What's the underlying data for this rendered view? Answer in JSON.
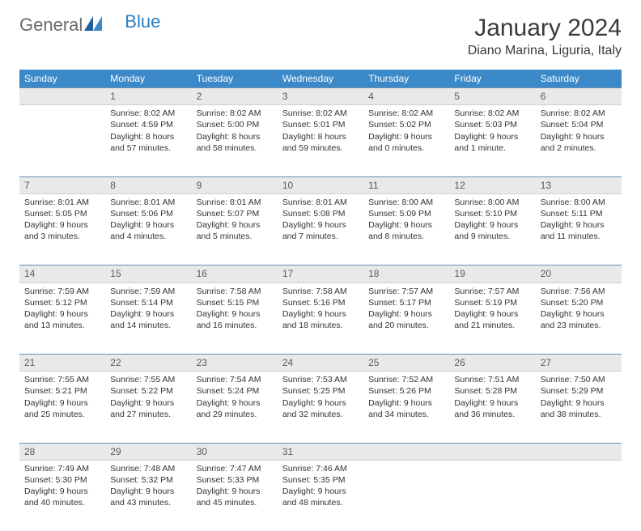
{
  "logo": {
    "part1": "General",
    "part2": "Blue"
  },
  "title": "January 2024",
  "location": "Diano Marina, Liguria, Italy",
  "colors": {
    "header_bg": "#3b89c9",
    "header_fg": "#ffffff",
    "daynum_bg": "#e9e9e9",
    "rule": "#6a8fb0",
    "text": "#333333",
    "logo_gray": "#6a6a6a",
    "logo_blue": "#2b7fc4"
  },
  "typography": {
    "title_fontsize": 30,
    "location_fontsize": 16,
    "header_fontsize": 12,
    "cell_fontsize": 10.5
  },
  "weekdays": [
    "Sunday",
    "Monday",
    "Tuesday",
    "Wednesday",
    "Thursday",
    "Friday",
    "Saturday"
  ],
  "weeks": [
    [
      {
        "n": "",
        "lines": [
          "",
          "",
          "",
          ""
        ]
      },
      {
        "n": "1",
        "lines": [
          "Sunrise: 8:02 AM",
          "Sunset: 4:59 PM",
          "Daylight: 8 hours",
          "and 57 minutes."
        ]
      },
      {
        "n": "2",
        "lines": [
          "Sunrise: 8:02 AM",
          "Sunset: 5:00 PM",
          "Daylight: 8 hours",
          "and 58 minutes."
        ]
      },
      {
        "n": "3",
        "lines": [
          "Sunrise: 8:02 AM",
          "Sunset: 5:01 PM",
          "Daylight: 8 hours",
          "and 59 minutes."
        ]
      },
      {
        "n": "4",
        "lines": [
          "Sunrise: 8:02 AM",
          "Sunset: 5:02 PM",
          "Daylight: 9 hours",
          "and 0 minutes."
        ]
      },
      {
        "n": "5",
        "lines": [
          "Sunrise: 8:02 AM",
          "Sunset: 5:03 PM",
          "Daylight: 9 hours",
          "and 1 minute."
        ]
      },
      {
        "n": "6",
        "lines": [
          "Sunrise: 8:02 AM",
          "Sunset: 5:04 PM",
          "Daylight: 9 hours",
          "and 2 minutes."
        ]
      }
    ],
    [
      {
        "n": "7",
        "lines": [
          "Sunrise: 8:01 AM",
          "Sunset: 5:05 PM",
          "Daylight: 9 hours",
          "and 3 minutes."
        ]
      },
      {
        "n": "8",
        "lines": [
          "Sunrise: 8:01 AM",
          "Sunset: 5:06 PM",
          "Daylight: 9 hours",
          "and 4 minutes."
        ]
      },
      {
        "n": "9",
        "lines": [
          "Sunrise: 8:01 AM",
          "Sunset: 5:07 PM",
          "Daylight: 9 hours",
          "and 5 minutes."
        ]
      },
      {
        "n": "10",
        "lines": [
          "Sunrise: 8:01 AM",
          "Sunset: 5:08 PM",
          "Daylight: 9 hours",
          "and 7 minutes."
        ]
      },
      {
        "n": "11",
        "lines": [
          "Sunrise: 8:00 AM",
          "Sunset: 5:09 PM",
          "Daylight: 9 hours",
          "and 8 minutes."
        ]
      },
      {
        "n": "12",
        "lines": [
          "Sunrise: 8:00 AM",
          "Sunset: 5:10 PM",
          "Daylight: 9 hours",
          "and 9 minutes."
        ]
      },
      {
        "n": "13",
        "lines": [
          "Sunrise: 8:00 AM",
          "Sunset: 5:11 PM",
          "Daylight: 9 hours",
          "and 11 minutes."
        ]
      }
    ],
    [
      {
        "n": "14",
        "lines": [
          "Sunrise: 7:59 AM",
          "Sunset: 5:12 PM",
          "Daylight: 9 hours",
          "and 13 minutes."
        ]
      },
      {
        "n": "15",
        "lines": [
          "Sunrise: 7:59 AM",
          "Sunset: 5:14 PM",
          "Daylight: 9 hours",
          "and 14 minutes."
        ]
      },
      {
        "n": "16",
        "lines": [
          "Sunrise: 7:58 AM",
          "Sunset: 5:15 PM",
          "Daylight: 9 hours",
          "and 16 minutes."
        ]
      },
      {
        "n": "17",
        "lines": [
          "Sunrise: 7:58 AM",
          "Sunset: 5:16 PM",
          "Daylight: 9 hours",
          "and 18 minutes."
        ]
      },
      {
        "n": "18",
        "lines": [
          "Sunrise: 7:57 AM",
          "Sunset: 5:17 PM",
          "Daylight: 9 hours",
          "and 20 minutes."
        ]
      },
      {
        "n": "19",
        "lines": [
          "Sunrise: 7:57 AM",
          "Sunset: 5:19 PM",
          "Daylight: 9 hours",
          "and 21 minutes."
        ]
      },
      {
        "n": "20",
        "lines": [
          "Sunrise: 7:56 AM",
          "Sunset: 5:20 PM",
          "Daylight: 9 hours",
          "and 23 minutes."
        ]
      }
    ],
    [
      {
        "n": "21",
        "lines": [
          "Sunrise: 7:55 AM",
          "Sunset: 5:21 PM",
          "Daylight: 9 hours",
          "and 25 minutes."
        ]
      },
      {
        "n": "22",
        "lines": [
          "Sunrise: 7:55 AM",
          "Sunset: 5:22 PM",
          "Daylight: 9 hours",
          "and 27 minutes."
        ]
      },
      {
        "n": "23",
        "lines": [
          "Sunrise: 7:54 AM",
          "Sunset: 5:24 PM",
          "Daylight: 9 hours",
          "and 29 minutes."
        ]
      },
      {
        "n": "24",
        "lines": [
          "Sunrise: 7:53 AM",
          "Sunset: 5:25 PM",
          "Daylight: 9 hours",
          "and 32 minutes."
        ]
      },
      {
        "n": "25",
        "lines": [
          "Sunrise: 7:52 AM",
          "Sunset: 5:26 PM",
          "Daylight: 9 hours",
          "and 34 minutes."
        ]
      },
      {
        "n": "26",
        "lines": [
          "Sunrise: 7:51 AM",
          "Sunset: 5:28 PM",
          "Daylight: 9 hours",
          "and 36 minutes."
        ]
      },
      {
        "n": "27",
        "lines": [
          "Sunrise: 7:50 AM",
          "Sunset: 5:29 PM",
          "Daylight: 9 hours",
          "and 38 minutes."
        ]
      }
    ],
    [
      {
        "n": "28",
        "lines": [
          "Sunrise: 7:49 AM",
          "Sunset: 5:30 PM",
          "Daylight: 9 hours",
          "and 40 minutes."
        ]
      },
      {
        "n": "29",
        "lines": [
          "Sunrise: 7:48 AM",
          "Sunset: 5:32 PM",
          "Daylight: 9 hours",
          "and 43 minutes."
        ]
      },
      {
        "n": "30",
        "lines": [
          "Sunrise: 7:47 AM",
          "Sunset: 5:33 PM",
          "Daylight: 9 hours",
          "and 45 minutes."
        ]
      },
      {
        "n": "31",
        "lines": [
          "Sunrise: 7:46 AM",
          "Sunset: 5:35 PM",
          "Daylight: 9 hours",
          "and 48 minutes."
        ]
      },
      {
        "n": "",
        "lines": [
          "",
          "",
          "",
          ""
        ]
      },
      {
        "n": "",
        "lines": [
          "",
          "",
          "",
          ""
        ]
      },
      {
        "n": "",
        "lines": [
          "",
          "",
          "",
          ""
        ]
      }
    ]
  ]
}
